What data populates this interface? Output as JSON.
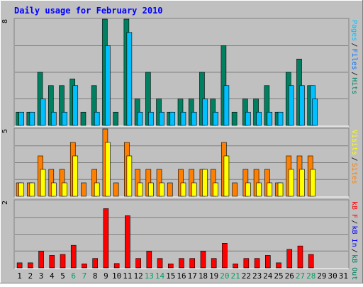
{
  "chart_data": [
    {
      "type": "bar",
      "title": "Daily usage for February 2010",
      "ylim": [
        0,
        8
      ],
      "y_max_label": "8",
      "grid": true,
      "legend": "right-vertical",
      "legend_labels": [
        {
          "text": "Pages",
          "color": "#00c0ff"
        },
        {
          "text": "/",
          "color": "#000000"
        },
        {
          "text": "Files",
          "color": "#0070ff"
        },
        {
          "text": "/",
          "color": "#000000"
        },
        {
          "text": "Hits",
          "color": "#008060"
        }
      ],
      "categories": [
        "1",
        "2",
        "3",
        "4",
        "5",
        "6",
        "7",
        "8",
        "9",
        "10",
        "11",
        "12",
        "13",
        "14",
        "15",
        "16",
        "17",
        "18",
        "19",
        "20",
        "21",
        "22",
        "23",
        "24",
        "25",
        "26",
        "27",
        "28",
        "29",
        "30",
        "31"
      ],
      "series": [
        {
          "name": "Hits",
          "color": "#008060",
          "values": [
            1,
            1,
            4,
            3,
            3,
            3.5,
            1,
            3,
            8,
            1,
            8,
            2,
            4,
            2,
            1,
            2,
            2,
            4,
            2,
            6,
            1,
            2,
            2,
            3,
            1,
            4,
            5,
            3,
            0,
            0,
            0
          ]
        },
        {
          "name": "Files",
          "color": "#00c0ff",
          "values": [
            1,
            1,
            2,
            1,
            1,
            3,
            0,
            1,
            6,
            0,
            7,
            1,
            1,
            1,
            1,
            1,
            1,
            2,
            1,
            3,
            0,
            1,
            1,
            1,
            1,
            3,
            3,
            3,
            0,
            0,
            0
          ]
        },
        {
          "name": "Pages",
          "color": "#00c0ff",
          "values": [
            0,
            0,
            0,
            0,
            0,
            0,
            0,
            0,
            0,
            0,
            0,
            0,
            0,
            0,
            0,
            0,
            0,
            0,
            0,
            0,
            0,
            0,
            0,
            0,
            0,
            0,
            0,
            2,
            0,
            0,
            0
          ]
        }
      ]
    },
    {
      "type": "bar",
      "ylim": [
        0,
        5
      ],
      "y_max_label": "5",
      "grid": true,
      "legend_labels": [
        {
          "text": "Visits",
          "color": "#ffff00"
        },
        {
          "text": "/",
          "color": "#000000"
        },
        {
          "text": "Sites",
          "color": "#ff8000"
        }
      ],
      "categories": [
        "1",
        "2",
        "3",
        "4",
        "5",
        "6",
        "7",
        "8",
        "9",
        "10",
        "11",
        "12",
        "13",
        "14",
        "15",
        "16",
        "17",
        "18",
        "19",
        "20",
        "21",
        "22",
        "23",
        "24",
        "25",
        "26",
        "27",
        "28",
        "29",
        "30",
        "31"
      ],
      "series": [
        {
          "name": "Sites",
          "color": "#ff8000",
          "values": [
            1,
            1,
            3,
            2,
            2,
            4,
            1,
            2,
            5,
            1,
            4,
            2,
            2,
            2,
            1,
            2,
            2,
            2,
            2,
            4,
            1,
            2,
            2,
            2,
            1,
            3,
            3,
            3,
            0,
            0,
            0
          ]
        },
        {
          "name": "Visits",
          "color": "#ffff00",
          "values": [
            1,
            1,
            2,
            1,
            1,
            3,
            0,
            1,
            4,
            0,
            3,
            1,
            1,
            1,
            0,
            1,
            1,
            2,
            1,
            3,
            0,
            1,
            1,
            1,
            1,
            2,
            2,
            2,
            0,
            0,
            0
          ]
        }
      ]
    },
    {
      "type": "bar",
      "ylim": [
        0,
        2
      ],
      "y_max_label": "2",
      "grid": true,
      "legend_labels": [
        {
          "text": "kB F",
          "color": "#ff0000"
        },
        {
          "text": "/",
          "color": "#000000"
        },
        {
          "text": "kB In",
          "color": "#0000ff"
        },
        {
          "text": "/",
          "color": "#000000"
        },
        {
          "text": "kB Out",
          "color": "#008060"
        }
      ],
      "categories": [
        "1",
        "2",
        "3",
        "4",
        "5",
        "6",
        "7",
        "8",
        "9",
        "10",
        "11",
        "12",
        "13",
        "14",
        "15",
        "16",
        "17",
        "18",
        "19",
        "20",
        "21",
        "22",
        "23",
        "24",
        "25",
        "26",
        "27",
        "28",
        "29",
        "30",
        "31"
      ],
      "weekend_days": [
        6,
        7,
        13,
        14,
        20,
        21,
        27,
        28
      ],
      "series": [
        {
          "name": "kB F",
          "color": "#ff0000",
          "values": [
            0.15,
            0.15,
            0.5,
            0.37,
            0.4,
            0.67,
            0.12,
            0.28,
            1.76,
            0.13,
            1.55,
            0.28,
            0.5,
            0.28,
            0.12,
            0.28,
            0.28,
            0.5,
            0.28,
            0.73,
            0.12,
            0.28,
            0.28,
            0.37,
            0.15,
            0.55,
            0.65,
            0.4,
            0,
            0,
            0
          ]
        }
      ]
    }
  ],
  "colors": {
    "background": "#c0c0c0",
    "frame_dark": "#808080",
    "frame_light": "#ffffff",
    "title": "#0000ff",
    "weekend_label": "#00a060",
    "weekday_label": "#000000"
  }
}
